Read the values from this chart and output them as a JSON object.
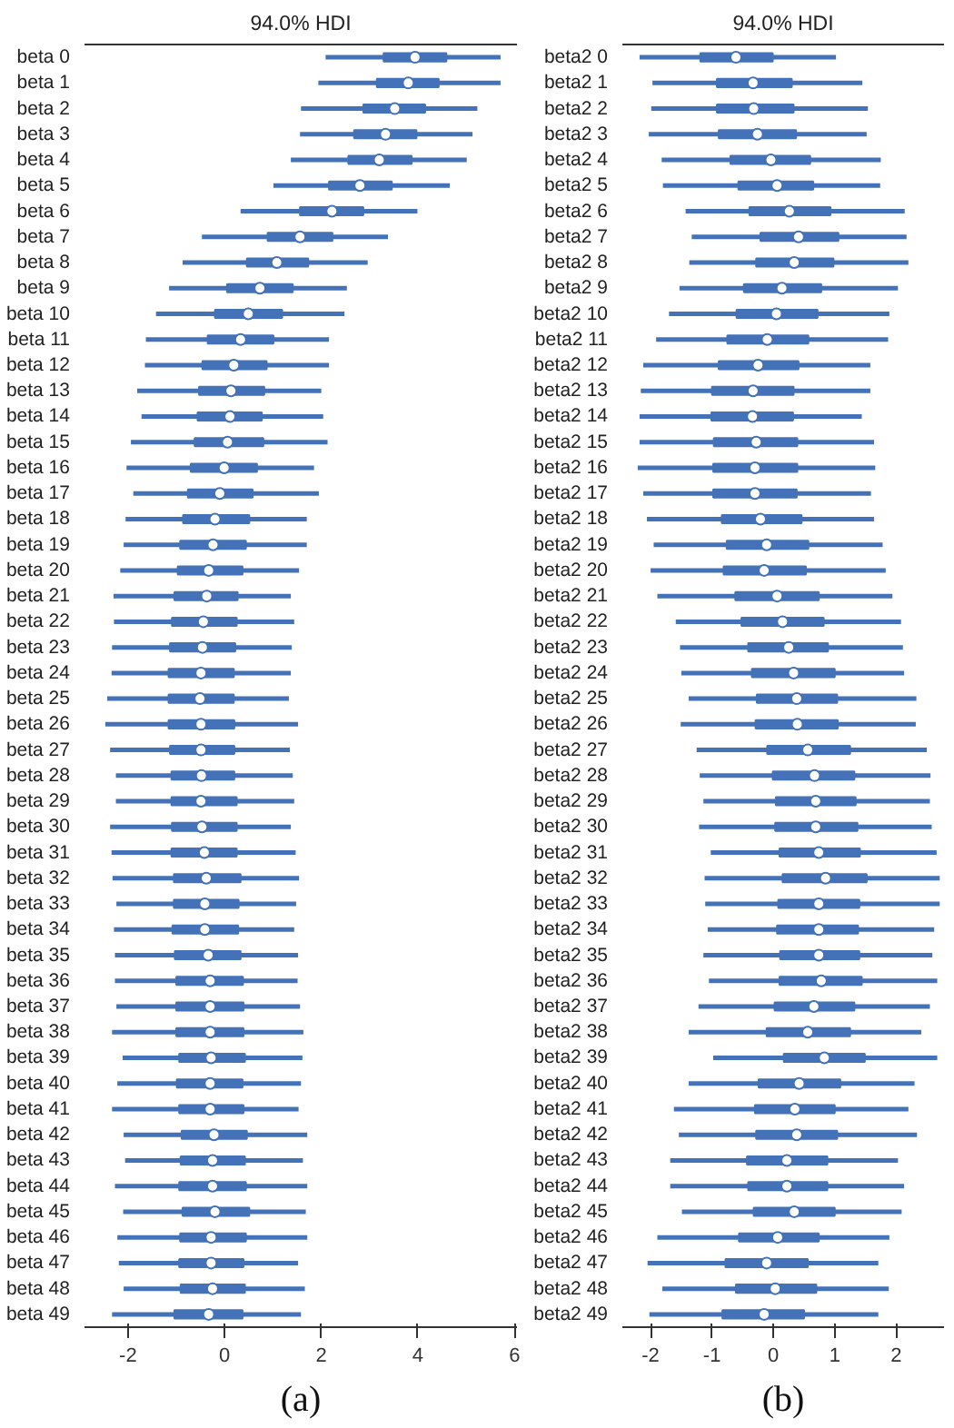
{
  "chart_data": [
    {
      "type": "box",
      "orientation": "horizontal",
      "title": "94.0% HDI",
      "color": "#4472b8",
      "grid": false,
      "annotations": [
        "(a)"
      ],
      "xlim": [
        -2.9,
        6.05
      ],
      "xticks": [
        -2,
        0,
        2,
        4,
        6
      ],
      "categories": [
        "beta 0",
        "beta 1",
        "beta 2",
        "beta 3",
        "beta 4",
        "beta 5",
        "beta 6",
        "beta 7",
        "beta 8",
        "beta 9",
        "beta 10",
        "beta 11",
        "beta 12",
        "beta 13",
        "beta 14",
        "beta 15",
        "beta 16",
        "beta 17",
        "beta 18",
        "beta 19",
        "beta 20",
        "beta 21",
        "beta 22",
        "beta 23",
        "beta 24",
        "beta 25",
        "beta 26",
        "beta 27",
        "beta 28",
        "beta 29",
        "beta 30",
        "beta 31",
        "beta 32",
        "beta 33",
        "beta 34",
        "beta 35",
        "beta 36",
        "beta 37",
        "beta 38",
        "beta 39",
        "beta 40",
        "beta 41",
        "beta 42",
        "beta 43",
        "beta 44",
        "beta 45",
        "beta 46",
        "beta 47",
        "beta 48",
        "beta 49"
      ],
      "boxes": [
        {
          "low": 2.09,
          "q1": 3.29,
          "median": 3.94,
          "q3": 4.59,
          "high": 5.71
        },
        {
          "low": 1.94,
          "q1": 3.15,
          "median": 3.8,
          "q3": 4.43,
          "high": 5.71
        },
        {
          "low": 1.58,
          "q1": 2.87,
          "median": 3.52,
          "q3": 4.15,
          "high": 5.23
        },
        {
          "low": 1.56,
          "q1": 2.68,
          "median": 3.33,
          "q3": 3.97,
          "high": 5.13
        },
        {
          "low": 1.37,
          "q1": 2.56,
          "median": 3.2,
          "q3": 3.87,
          "high": 5.01
        },
        {
          "low": 1.01,
          "q1": 2.16,
          "median": 2.8,
          "q3": 3.46,
          "high": 4.66
        },
        {
          "low": 0.33,
          "q1": 1.56,
          "median": 2.22,
          "q3": 2.87,
          "high": 3.99
        },
        {
          "low": -0.47,
          "q1": 0.89,
          "median": 1.56,
          "q3": 2.23,
          "high": 3.38
        },
        {
          "low": -0.87,
          "q1": 0.46,
          "median": 1.08,
          "q3": 1.73,
          "high": 2.96
        },
        {
          "low": -1.15,
          "q1": 0.05,
          "median": 0.73,
          "q3": 1.41,
          "high": 2.53
        },
        {
          "low": -1.42,
          "q1": -0.2,
          "median": 0.49,
          "q3": 1.19,
          "high": 2.48
        },
        {
          "low": -1.63,
          "q1": -0.35,
          "median": 0.33,
          "q3": 1.01,
          "high": 2.16
        },
        {
          "low": -1.65,
          "q1": -0.46,
          "median": 0.19,
          "q3": 0.87,
          "high": 2.16
        },
        {
          "low": -1.81,
          "q1": -0.53,
          "median": 0.13,
          "q3": 0.82,
          "high": 2.0
        },
        {
          "low": -1.72,
          "q1": -0.56,
          "median": 0.11,
          "q3": 0.77,
          "high": 2.04
        },
        {
          "low": -1.94,
          "q1": -0.62,
          "median": 0.06,
          "q3": 0.8,
          "high": 2.13
        },
        {
          "low": -2.03,
          "q1": -0.7,
          "median": -0.01,
          "q3": 0.67,
          "high": 1.85
        },
        {
          "low": -1.89,
          "q1": -0.76,
          "median": -0.1,
          "q3": 0.58,
          "high": 1.95
        },
        {
          "low": -2.05,
          "q1": -0.86,
          "median": -0.2,
          "q3": 0.51,
          "high": 1.7
        },
        {
          "low": -2.09,
          "q1": -0.92,
          "median": -0.24,
          "q3": 0.44,
          "high": 1.7
        },
        {
          "low": -2.16,
          "q1": -0.97,
          "median": -0.33,
          "q3": 0.37,
          "high": 1.54
        },
        {
          "low": -2.3,
          "q1": -1.04,
          "median": -0.37,
          "q3": 0.27,
          "high": 1.37
        },
        {
          "low": -2.29,
          "q1": -1.09,
          "median": -0.44,
          "q3": 0.25,
          "high": 1.44
        },
        {
          "low": -2.33,
          "q1": -1.13,
          "median": -0.46,
          "q3": 0.22,
          "high": 1.39
        },
        {
          "low": -2.34,
          "q1": -1.16,
          "median": -0.49,
          "q3": 0.19,
          "high": 1.37
        },
        {
          "low": -2.43,
          "q1": -1.16,
          "median": -0.51,
          "q3": 0.19,
          "high": 1.33
        },
        {
          "low": -2.47,
          "q1": -1.16,
          "median": -0.49,
          "q3": 0.2,
          "high": 1.52
        },
        {
          "low": -2.37,
          "q1": -1.13,
          "median": -0.49,
          "q3": 0.2,
          "high": 1.35
        },
        {
          "low": -2.25,
          "q1": -1.1,
          "median": -0.48,
          "q3": 0.2,
          "high": 1.41
        },
        {
          "low": -2.25,
          "q1": -1.1,
          "median": -0.49,
          "q3": 0.25,
          "high": 1.44
        },
        {
          "low": -2.37,
          "q1": -1.09,
          "median": -0.47,
          "q3": 0.25,
          "high": 1.37
        },
        {
          "low": -2.34,
          "q1": -1.1,
          "median": -0.42,
          "q3": 0.25,
          "high": 1.47
        },
        {
          "low": -2.32,
          "q1": -1.05,
          "median": -0.38,
          "q3": 0.33,
          "high": 1.54
        },
        {
          "low": -2.24,
          "q1": -1.05,
          "median": -0.41,
          "q3": 0.29,
          "high": 1.48
        },
        {
          "low": -2.29,
          "q1": -1.08,
          "median": -0.41,
          "q3": 0.28,
          "high": 1.44
        },
        {
          "low": -2.27,
          "q1": -1.03,
          "median": -0.34,
          "q3": 0.33,
          "high": 1.52
        },
        {
          "low": -2.27,
          "q1": -1.0,
          "median": -0.3,
          "q3": 0.38,
          "high": 1.51
        },
        {
          "low": -2.24,
          "q1": -1.0,
          "median": -0.3,
          "q3": 0.39,
          "high": 1.56
        },
        {
          "low": -2.33,
          "q1": -1.0,
          "median": -0.3,
          "q3": 0.39,
          "high": 1.63
        },
        {
          "low": -2.11,
          "q1": -0.94,
          "median": -0.28,
          "q3": 0.42,
          "high": 1.61
        },
        {
          "low": -2.22,
          "q1": -0.99,
          "median": -0.3,
          "q3": 0.37,
          "high": 1.58
        },
        {
          "low": -2.33,
          "q1": -0.94,
          "median": -0.3,
          "q3": 0.39,
          "high": 1.53
        },
        {
          "low": -2.09,
          "q1": -0.89,
          "median": -0.22,
          "q3": 0.46,
          "high": 1.71
        },
        {
          "low": -2.06,
          "q1": -0.91,
          "median": -0.25,
          "q3": 0.42,
          "high": 1.62
        },
        {
          "low": -2.27,
          "q1": -0.94,
          "median": -0.25,
          "q3": 0.44,
          "high": 1.71
        },
        {
          "low": -2.1,
          "q1": -0.87,
          "median": -0.2,
          "q3": 0.51,
          "high": 1.68
        },
        {
          "low": -2.22,
          "q1": -0.92,
          "median": -0.28,
          "q3": 0.44,
          "high": 1.71
        },
        {
          "low": -2.19,
          "q1": -0.94,
          "median": -0.28,
          "q3": 0.39,
          "high": 1.52
        },
        {
          "low": -2.09,
          "q1": -0.91,
          "median": -0.25,
          "q3": 0.42,
          "high": 1.66
        },
        {
          "low": -2.33,
          "q1": -1.04,
          "median": -0.33,
          "q3": 0.37,
          "high": 1.58
        }
      ]
    },
    {
      "type": "box",
      "orientation": "horizontal",
      "title": "94.0% HDI",
      "color": "#4472b8",
      "grid": false,
      "annotations": [
        "(b)"
      ],
      "xlim": [
        -2.46,
        2.78
      ],
      "xticks": [
        -2,
        -1,
        0,
        1,
        2
      ],
      "categories": [
        "beta2 0",
        "beta2 1",
        "beta2 2",
        "beta2 3",
        "beta2 4",
        "beta2 5",
        "beta2 6",
        "beta2 7",
        "beta2 8",
        "beta2 9",
        "beta2 10",
        "beta2 11",
        "beta2 12",
        "beta2 13",
        "beta2 14",
        "beta2 15",
        "beta2 16",
        "beta2 17",
        "beta2 18",
        "beta2 19",
        "beta2 20",
        "beta2 21",
        "beta2 22",
        "beta2 23",
        "beta2 24",
        "beta2 25",
        "beta2 26",
        "beta2 27",
        "beta2 28",
        "beta2 29",
        "beta2 30",
        "beta2 31",
        "beta2 32",
        "beta2 33",
        "beta2 34",
        "beta2 35",
        "beta2 36",
        "beta2 37",
        "beta2 38",
        "beta2 39",
        "beta2 40",
        "beta2 41",
        "beta2 42",
        "beta2 43",
        "beta2 44",
        "beta2 45",
        "beta2 46",
        "beta2 47",
        "beta2 48",
        "beta2 49"
      ],
      "boxes": [
        {
          "low": -2.18,
          "q1": -1.19,
          "median": -0.61,
          "q3": -0.01,
          "high": 1.02
        },
        {
          "low": -1.97,
          "q1": -0.92,
          "median": -0.33,
          "q3": 0.3,
          "high": 1.45
        },
        {
          "low": -1.99,
          "q1": -0.92,
          "median": -0.32,
          "q3": 0.33,
          "high": 1.54
        },
        {
          "low": -2.03,
          "q1": -0.89,
          "median": -0.26,
          "q3": 0.37,
          "high": 1.52
        },
        {
          "low": -1.82,
          "q1": -0.7,
          "median": -0.04,
          "q3": 0.6,
          "high": 1.75
        },
        {
          "low": -1.8,
          "q1": -0.57,
          "median": 0.06,
          "q3": 0.65,
          "high": 1.74
        },
        {
          "low": -1.43,
          "q1": -0.39,
          "median": 0.26,
          "q3": 0.93,
          "high": 2.14
        },
        {
          "low": -1.33,
          "q1": -0.21,
          "median": 0.41,
          "q3": 1.06,
          "high": 2.17
        },
        {
          "low": -1.37,
          "q1": -0.28,
          "median": 0.34,
          "q3": 0.98,
          "high": 2.2
        },
        {
          "low": -1.53,
          "q1": -0.48,
          "median": 0.14,
          "q3": 0.78,
          "high": 2.03
        },
        {
          "low": -1.7,
          "q1": -0.6,
          "median": 0.05,
          "q3": 0.72,
          "high": 1.89
        },
        {
          "low": -1.91,
          "q1": -0.75,
          "median": -0.1,
          "q3": 0.57,
          "high": 1.87
        },
        {
          "low": -2.12,
          "q1": -0.89,
          "median": -0.25,
          "q3": 0.41,
          "high": 1.58
        },
        {
          "low": -2.16,
          "q1": -1.0,
          "median": -0.33,
          "q3": 0.33,
          "high": 1.58
        },
        {
          "low": -2.18,
          "q1": -1.01,
          "median": -0.34,
          "q3": 0.32,
          "high": 1.44
        },
        {
          "low": -2.18,
          "q1": -0.97,
          "median": -0.28,
          "q3": 0.39,
          "high": 1.64
        },
        {
          "low": -2.21,
          "q1": -0.98,
          "median": -0.3,
          "q3": 0.39,
          "high": 1.66
        },
        {
          "low": -2.12,
          "q1": -0.98,
          "median": -0.3,
          "q3": 0.38,
          "high": 1.59
        },
        {
          "low": -2.06,
          "q1": -0.84,
          "median": -0.21,
          "q3": 0.46,
          "high": 1.64
        },
        {
          "low": -1.95,
          "q1": -0.76,
          "median": -0.11,
          "q3": 0.57,
          "high": 1.78
        },
        {
          "low": -2.0,
          "q1": -0.81,
          "median": -0.15,
          "q3": 0.53,
          "high": 1.83
        },
        {
          "low": -1.89,
          "q1": -0.62,
          "median": 0.06,
          "q3": 0.74,
          "high": 1.94
        },
        {
          "low": -1.59,
          "q1": -0.52,
          "median": 0.15,
          "q3": 0.82,
          "high": 2.08
        },
        {
          "low": -1.52,
          "q1": -0.41,
          "median": 0.25,
          "q3": 0.89,
          "high": 2.11
        },
        {
          "low": -1.5,
          "q1": -0.35,
          "median": 0.33,
          "q3": 1.0,
          "high": 2.13
        },
        {
          "low": -1.38,
          "q1": -0.27,
          "median": 0.38,
          "q3": 1.04,
          "high": 2.33
        },
        {
          "low": -1.51,
          "q1": -0.29,
          "median": 0.39,
          "q3": 1.05,
          "high": 2.32
        },
        {
          "low": -1.25,
          "q1": -0.1,
          "median": 0.56,
          "q3": 1.25,
          "high": 2.5
        },
        {
          "low": -1.2,
          "q1": -0.01,
          "median": 0.67,
          "q3": 1.32,
          "high": 2.56
        },
        {
          "low": -1.14,
          "q1": 0.04,
          "median": 0.69,
          "q3": 1.34,
          "high": 2.55
        },
        {
          "low": -1.21,
          "q1": 0.03,
          "median": 0.69,
          "q3": 1.37,
          "high": 2.58
        },
        {
          "low": -1.02,
          "q1": 0.1,
          "median": 0.74,
          "q3": 1.41,
          "high": 2.66
        },
        {
          "low": -1.12,
          "q1": 0.15,
          "median": 0.85,
          "q3": 1.52,
          "high": 2.71
        },
        {
          "low": -1.11,
          "q1": 0.08,
          "median": 0.74,
          "q3": 1.4,
          "high": 2.71
        },
        {
          "low": -1.07,
          "q1": 0.06,
          "median": 0.74,
          "q3": 1.38,
          "high": 2.62
        },
        {
          "low": -1.14,
          "q1": 0.11,
          "median": 0.74,
          "q3": 1.4,
          "high": 2.59
        },
        {
          "low": -1.05,
          "q1": 0.1,
          "median": 0.78,
          "q3": 1.44,
          "high": 2.67
        },
        {
          "low": -1.22,
          "q1": 0.02,
          "median": 0.66,
          "q3": 1.32,
          "high": 2.55
        },
        {
          "low": -1.38,
          "q1": -0.11,
          "median": 0.56,
          "q3": 1.25,
          "high": 2.41
        },
        {
          "low": -0.98,
          "q1": 0.17,
          "median": 0.83,
          "q3": 1.49,
          "high": 2.67
        },
        {
          "low": -1.38,
          "q1": -0.24,
          "median": 0.42,
          "q3": 1.09,
          "high": 2.3
        },
        {
          "low": -1.62,
          "q1": -0.3,
          "median": 0.35,
          "q3": 1.0,
          "high": 2.2
        },
        {
          "low": -1.54,
          "q1": -0.28,
          "median": 0.38,
          "q3": 1.04,
          "high": 2.34
        },
        {
          "low": -1.68,
          "q1": -0.43,
          "median": 0.22,
          "q3": 0.88,
          "high": 2.03
        },
        {
          "low": -1.68,
          "q1": -0.41,
          "median": 0.22,
          "q3": 0.88,
          "high": 2.13
        },
        {
          "low": -1.49,
          "q1": -0.32,
          "median": 0.34,
          "q3": 1.0,
          "high": 2.09
        },
        {
          "low": -1.89,
          "q1": -0.56,
          "median": 0.07,
          "q3": 0.74,
          "high": 1.89
        },
        {
          "low": -2.05,
          "q1": -0.78,
          "median": -0.11,
          "q3": 0.56,
          "high": 1.71
        },
        {
          "low": -1.81,
          "q1": -0.61,
          "median": 0.03,
          "q3": 0.7,
          "high": 1.88
        },
        {
          "low": -2.02,
          "q1": -0.83,
          "median": -0.15,
          "q3": 0.5,
          "high": 1.71
        }
      ]
    }
  ]
}
